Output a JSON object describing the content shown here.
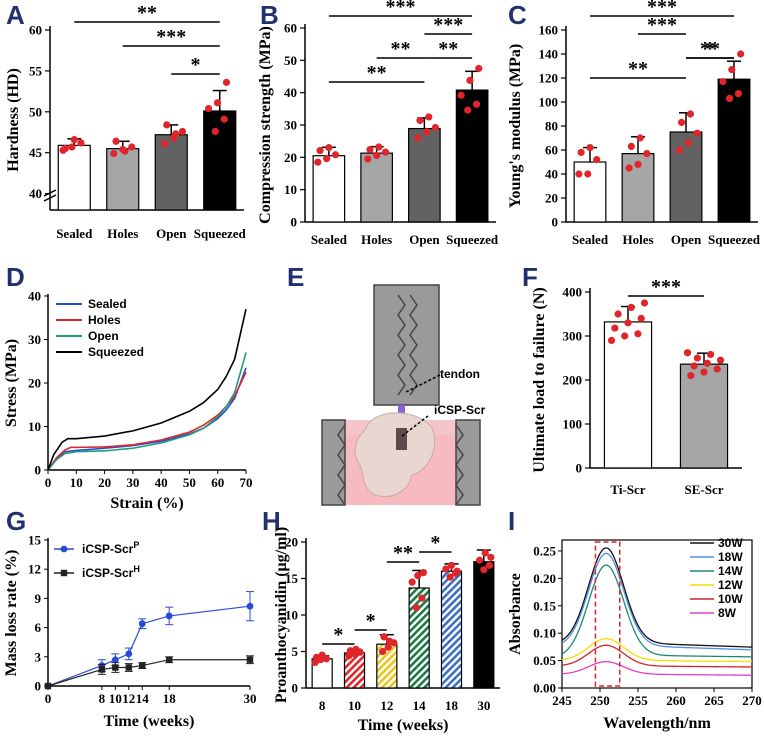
{
  "colors": {
    "dot": "#e0262b",
    "blue": "#2a4bd7",
    "red": "#e0262b",
    "green": "#1e9e7a",
    "black": "#000000"
  },
  "panel_labels": [
    "A",
    "B",
    "C",
    "D",
    "E",
    "F",
    "G",
    "H",
    "I"
  ],
  "chart_data": [
    {
      "id": "A",
      "type": "bar",
      "categories": [
        "Sealed",
        "Holes",
        "Open",
        "Squeezed"
      ],
      "values": [
        45.9,
        45.5,
        47.2,
        50.1
      ],
      "errors": [
        0.8,
        0.9,
        1.2,
        2.5
      ],
      "points": [
        [
          45.3,
          45.7,
          46.2,
          45.5,
          46.6
        ],
        [
          44.9,
          45.4,
          45.7,
          46.4,
          45.2
        ],
        [
          46.1,
          46.8,
          47.6,
          48.4,
          47.3
        ],
        [
          47.6,
          49.1,
          50.4,
          51.1,
          53.6
        ]
      ],
      "ylabel": "Hardness (HD)",
      "ylim": [
        38,
        60
      ],
      "yticks": [
        "40",
        "45",
        "50",
        "55",
        "60"
      ],
      "sig": [
        {
          "from": 0,
          "to": 3,
          "label": "**"
        },
        {
          "from": 1,
          "to": 3,
          "label": "***"
        },
        {
          "from": 2,
          "to": 3,
          "label": "*"
        }
      ]
    },
    {
      "id": "B",
      "type": "bar",
      "categories": [
        "Sealed",
        "Holes",
        "Open",
        "Squeezed"
      ],
      "values": [
        20.5,
        21.3,
        28.9,
        40.8
      ],
      "errors": [
        2.6,
        2.0,
        3.3,
        5.8
      ],
      "points": [
        [
          18.5,
          19.6,
          20.8,
          22.1,
          23.0
        ],
        [
          19.5,
          20.6,
          21.6,
          22.4,
          23.2
        ],
        [
          26.0,
          27.9,
          29.2,
          31.4,
          32.5
        ],
        [
          34.6,
          36.4,
          39.2,
          43.8,
          47.5
        ]
      ],
      "ylabel": "Compression strength (MPa)",
      "ylim": [
        0,
        60
      ],
      "yticks": [
        "0",
        "10",
        "20",
        "30",
        "40",
        "50",
        "60"
      ],
      "sig": [
        {
          "from": 0,
          "to": 2,
          "label": "**"
        },
        {
          "from": 2,
          "to": 3,
          "label": "**"
        },
        {
          "from": 1,
          "to": 2,
          "label": "**"
        },
        {
          "from": 2,
          "to": 3,
          "label": "***"
        },
        {
          "from": 0,
          "to": 3,
          "label": "***"
        }
      ]
    },
    {
      "id": "C",
      "type": "bar",
      "categories": [
        "Sealed",
        "Holes",
        "Open",
        "Squeezed"
      ],
      "values": [
        50,
        57,
        75,
        119
      ],
      "errors": [
        12,
        14,
        16,
        15
      ],
      "points": [
        [
          40,
          40,
          52,
          58,
          62
        ],
        [
          45,
          48,
          57,
          63,
          70
        ],
        [
          60,
          66,
          74,
          83,
          90
        ],
        [
          103,
          107,
          117,
          127,
          140
        ]
      ],
      "ylabel": "Young's modulus (MPa)",
      "ylim": [
        0,
        160
      ],
      "yticks": [
        "0",
        "20",
        "40",
        "60",
        "80",
        "100",
        "120",
        "140",
        "160"
      ],
      "sig": [
        {
          "from": 0,
          "to": 2,
          "label": "**"
        },
        {
          "from": 2,
          "to": 3,
          "label": "*"
        },
        {
          "from": 2,
          "to": 3,
          "label": "**"
        },
        {
          "from": 1,
          "to": 2,
          "label": "***"
        },
        {
          "from": 0,
          "to": 3,
          "label": "***"
        }
      ]
    },
    {
      "id": "D",
      "type": "line",
      "xlabel": "Strain (%)",
      "ylabel": "Stress (MPa)",
      "xlim": [
        0,
        70
      ],
      "ylim": [
        0,
        40
      ],
      "xticks": [
        "0",
        "10",
        "20",
        "30",
        "40",
        "50",
        "60",
        "70"
      ],
      "yticks": [
        "0",
        "10",
        "20",
        "30",
        "40"
      ],
      "series": [
        {
          "name": "Sealed",
          "x": [
            0,
            3,
            6,
            10,
            20,
            30,
            40,
            50,
            55,
            60,
            63,
            66,
            70
          ],
          "y": [
            0,
            2.5,
            4.2,
            4.5,
            5.0,
            5.6,
            6.6,
            8.3,
            9.6,
            11.8,
            13.8,
            16.5,
            23.5
          ]
        },
        {
          "name": "Holes",
          "x": [
            0,
            3,
            6,
            8,
            10,
            20,
            30,
            40,
            50,
            55,
            60,
            63,
            66,
            70
          ],
          "y": [
            0,
            2.8,
            4.6,
            5.2,
            5.2,
            5.3,
            5.8,
            6.9,
            8.7,
            10.3,
            12.6,
            14.6,
            17.0,
            22.5
          ]
        },
        {
          "name": "Open",
          "x": [
            0,
            3,
            6,
            10,
            20,
            30,
            40,
            50,
            55,
            60,
            63,
            66,
            70
          ],
          "y": [
            0,
            2.4,
            3.8,
            4.2,
            4.4,
            5.0,
            6.2,
            8.1,
            9.6,
            12.2,
            14.5,
            17.8,
            27.0
          ]
        },
        {
          "name": "Squeezed",
          "x": [
            0,
            2,
            5,
            7,
            10,
            20,
            30,
            40,
            50,
            55,
            60,
            63,
            66,
            70
          ],
          "y": [
            0,
            3.5,
            6.4,
            7.2,
            7.2,
            7.8,
            9.0,
            10.8,
            13.5,
            15.5,
            18.5,
            21.5,
            25.5,
            37.0
          ]
        }
      ]
    },
    {
      "id": "F",
      "type": "bar",
      "categories": [
        "Ti-Scr",
        "SE-Scr"
      ],
      "values": [
        332,
        236
      ],
      "errors": [
        35,
        25
      ],
      "points": [
        [
          290,
          300,
          305,
          318,
          330,
          340,
          350,
          365,
          375
        ],
        [
          210,
          218,
          225,
          232,
          238,
          245,
          250,
          258,
          262
        ]
      ],
      "ylabel": "Ultimate load to failure (N)",
      "ylim": [
        0,
        400
      ],
      "yticks": [
        "0",
        "100",
        "200",
        "300",
        "400"
      ],
      "sig": [
        {
          "from": 0,
          "to": 1,
          "label": "***"
        }
      ]
    },
    {
      "id": "G",
      "type": "line",
      "xlabel": "Time (weeks)",
      "ylabel": "Mass loss rate (%)",
      "xlim": [
        0,
        30
      ],
      "ylim": [
        0,
        15
      ],
      "xticks": [
        "0",
        "8",
        "10",
        "12",
        "14",
        "18",
        "30"
      ],
      "xtick_values": [
        0,
        8,
        10,
        12,
        14,
        18,
        30
      ],
      "yticks": [
        "0",
        "3",
        "6",
        "9",
        "12",
        "15"
      ],
      "series": [
        {
          "name": "iCSP-Scr",
          "sup": "P",
          "x": [
            0,
            8,
            10,
            12,
            14,
            18,
            30
          ],
          "y": [
            0,
            2.1,
            2.7,
            3.3,
            6.4,
            7.2,
            8.2
          ],
          "err": [
            0,
            0.6,
            0.6,
            0.6,
            0.5,
            0.9,
            1.5
          ]
        },
        {
          "name": "iCSP-Scr",
          "sup": "H",
          "x": [
            0,
            8,
            10,
            12,
            14,
            18,
            30
          ],
          "y": [
            0,
            1.7,
            1.9,
            1.9,
            2.1,
            2.7,
            2.7
          ],
          "err": [
            0,
            0.5,
            0.5,
            0.4,
            0.3,
            0.3,
            0.4
          ]
        }
      ]
    },
    {
      "id": "H",
      "type": "bar",
      "categories": [
        "8",
        "10",
        "12",
        "14",
        "18",
        "30"
      ],
      "values": [
        4.0,
        4.8,
        6.0,
        13.7,
        16.0,
        17.3
      ],
      "errors": [
        0.4,
        0.5,
        1.3,
        2.4,
        1.0,
        1.6
      ],
      "points": [
        [
          3.5,
          3.9,
          4.0,
          4.2,
          4.5
        ],
        [
          4.4,
          4.7,
          4.9,
          5.1,
          5.3
        ],
        [
          5.0,
          5.6,
          6.2,
          7.0,
          6.4
        ],
        [
          11.0,
          12.3,
          14.5,
          15.4,
          15.8
        ],
        [
          15.2,
          15.7,
          16.3,
          16.8,
          16.0
        ],
        [
          16.2,
          16.8,
          17.5,
          18.5,
          17.9
        ]
      ],
      "xlabel": "Time (weeks)",
      "ylabel": "Proanthocyanidin (μg/ml)",
      "ylim": [
        0,
        20
      ],
      "yticks": [
        "0",
        "5",
        "10",
        "15",
        "20"
      ],
      "sig": [
        {
          "from": 0,
          "to": 1,
          "label": "*"
        },
        {
          "from": 1,
          "to": 2,
          "label": "*"
        },
        {
          "from": 2,
          "to": 3,
          "label": "**"
        },
        {
          "from": 3,
          "to": 4,
          "label": "*"
        }
      ]
    },
    {
      "id": "I",
      "type": "line",
      "xlabel": "Wavelength/nm",
      "ylabel": "Absorbance",
      "xlim": [
        245,
        270
      ],
      "ylim": [
        0,
        0.27
      ],
      "xticks": [
        "245",
        "250",
        "255",
        "260",
        "265",
        "270"
      ],
      "yticks": [
        "0.00",
        "0.05",
        "0.10",
        "0.15",
        "0.20",
        "0.25"
      ],
      "series": [
        {
          "name": "30W",
          "peak": 0.255,
          "base": 0.08,
          "tail": 0.085
        },
        {
          "name": "18W",
          "peak": 0.245,
          "base": 0.075,
          "tail": 0.08
        },
        {
          "name": "14W",
          "peak": 0.222,
          "base": 0.055,
          "tail": 0.072
        },
        {
          "name": "12W",
          "peak": 0.09,
          "base": 0.05,
          "tail": 0.05
        },
        {
          "name": "10W",
          "peak": 0.078,
          "base": 0.04,
          "tail": 0.04
        },
        {
          "name": "8W",
          "peak": 0.048,
          "base": 0.025,
          "tail": 0.025
        }
      ]
    }
  ],
  "diagram_E": {
    "tendon_label": "tendon",
    "screw_label": "iCSP-Scr"
  }
}
